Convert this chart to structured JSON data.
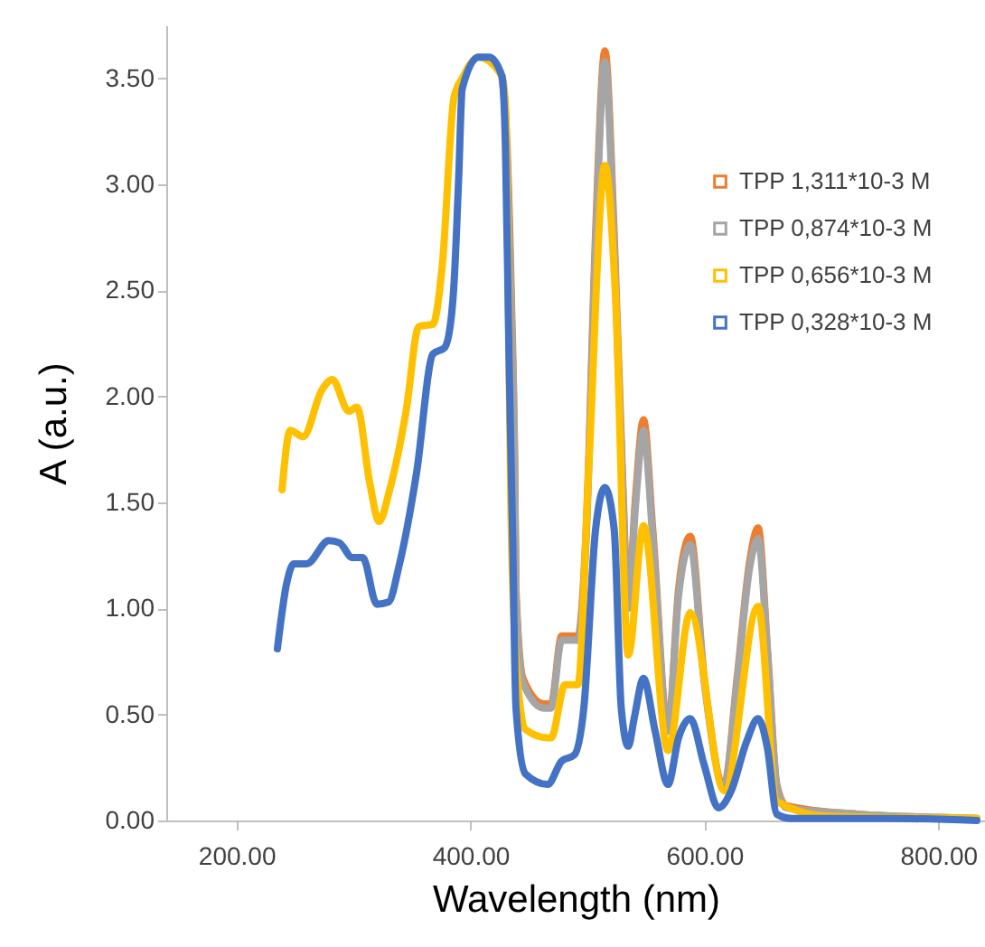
{
  "chart_data": {
    "type": "line",
    "xlabel": "Wavelength (nm)",
    "ylabel": "A (a.u.)",
    "xlim": [
      140,
      840
    ],
    "ylim": [
      0,
      3.75
    ],
    "xticks": [
      {
        "value": 200,
        "label": "200.00"
      },
      {
        "value": 400,
        "label": "400.00"
      },
      {
        "value": 600,
        "label": "600.00"
      },
      {
        "value": 800,
        "label": "800.00"
      }
    ],
    "yticks": [
      {
        "value": 0,
        "label": "0.00"
      },
      {
        "value": 0.5,
        "label": "0.50"
      },
      {
        "value": 1,
        "label": "1.00"
      },
      {
        "value": 1.5,
        "label": "1.50"
      },
      {
        "value": 2,
        "label": "2.00"
      },
      {
        "value": 2.5,
        "label": "2.50"
      },
      {
        "value": 3,
        "label": "3.00"
      },
      {
        "value": 3.5,
        "label": "3.50"
      }
    ],
    "legend": "top right",
    "grid": false,
    "series": [
      {
        "name": "TPP 1,311*10-3 M",
        "color": "#ed7d31",
        "x": [
          427,
          430,
          435,
          438,
          439,
          445,
          463,
          469,
          478,
          492,
          499,
          507,
          515,
          523,
          530,
          535,
          541,
          548,
          556,
          569,
          578,
          588,
          600,
          617,
          628,
          639,
          646,
          654,
          662,
          670,
          731,
          833
        ],
        "values": [
          3.51,
          3.34,
          2.48,
          1.64,
          1.09,
          0.67,
          0.55,
          0.55,
          0.87,
          0.87,
          1.37,
          2.76,
          3.63,
          2.76,
          1.64,
          1.02,
          1.51,
          1.89,
          1.37,
          0.43,
          1.09,
          1.34,
          0.67,
          0.17,
          0.67,
          1.23,
          1.38,
          0.81,
          0.17,
          0.07,
          0.03,
          0.01
        ]
      },
      {
        "name": "TPP 0,874*10-3 M",
        "color": "#a5a5a5",
        "x": [
          427,
          430,
          435,
          438,
          439,
          445,
          463,
          469,
          478,
          492,
          499,
          507,
          515,
          523,
          530,
          535,
          541,
          548,
          556,
          569,
          578,
          588,
          600,
          617,
          628,
          639,
          646,
          654,
          662,
          670,
          731,
          833
        ],
        "values": [
          3.5,
          3.3,
          2.4,
          1.6,
          1.06,
          0.65,
          0.53,
          0.53,
          0.85,
          0.85,
          1.33,
          2.7,
          3.58,
          2.7,
          1.6,
          1.0,
          1.47,
          1.84,
          1.33,
          0.42,
          1.06,
          1.3,
          0.65,
          0.16,
          0.65,
          1.2,
          1.33,
          0.79,
          0.16,
          0.06,
          0.03,
          0.01
        ]
      },
      {
        "name": "TPP 0,656*10-3 M",
        "color": "#ffc000",
        "x": [
          239,
          246,
          257,
          273,
          282,
          296,
          303,
          314,
          322,
          331,
          345,
          356,
          368,
          376,
          386,
          393,
          407,
          427,
          430,
          435,
          439,
          447,
          466,
          469,
          481,
          492,
          501,
          515,
          524,
          535,
          548,
          569,
          588,
          617,
          646,
          662,
          705,
          833
        ],
        "values": [
          1.56,
          1.84,
          1.81,
          2.03,
          2.08,
          1.93,
          1.95,
          1.59,
          1.41,
          1.56,
          1.93,
          2.33,
          2.34,
          2.62,
          3.41,
          3.5,
          3.6,
          3.51,
          3.37,
          1.37,
          0.76,
          0.43,
          0.39,
          0.39,
          0.64,
          0.64,
          1.64,
          3.09,
          2.48,
          0.78,
          1.39,
          0.33,
          0.98,
          0.14,
          1.01,
          0.09,
          0.02,
          0.01
        ]
      },
      {
        "name": "TPP 0,328*10-3 M",
        "color": "#4472c4",
        "x": [
          235,
          243,
          249,
          260,
          279,
          288,
          299,
          308,
          320,
          330,
          339,
          354,
          368,
          378,
          384,
          386,
          390,
          393,
          407,
          416,
          427,
          430,
          433,
          436,
          439,
          447,
          466,
          478,
          489,
          497,
          507,
          515,
          523,
          529,
          535,
          540,
          548,
          558,
          569,
          578,
          588,
          600,
          612,
          623,
          636,
          646,
          654,
          662,
          674,
          756,
          833
        ],
        "values": [
          0.81,
          1.12,
          1.21,
          1.21,
          1.32,
          1.31,
          1.24,
          1.24,
          1.02,
          1.03,
          1.2,
          1.64,
          2.2,
          2.23,
          2.39,
          2.53,
          3.03,
          3.45,
          3.6,
          3.6,
          3.51,
          3.17,
          2.2,
          1.37,
          0.53,
          0.22,
          0.17,
          0.28,
          0.31,
          0.53,
          1.37,
          1.57,
          1.37,
          0.53,
          0.35,
          0.48,
          0.67,
          0.42,
          0.17,
          0.39,
          0.48,
          0.26,
          0.06,
          0.14,
          0.37,
          0.48,
          0.34,
          0.03,
          0.01,
          0.01,
          0.0
        ]
      }
    ]
  }
}
